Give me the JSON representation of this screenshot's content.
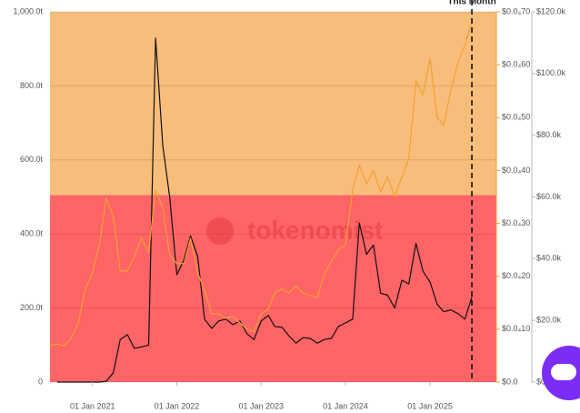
{
  "chart_data": {
    "type": "line",
    "watermark": "tokenomist",
    "x": [
      "2020-07-01",
      "2020-08-01",
      "2020-09-01",
      "2020-10-01",
      "2020-11-01",
      "2020-12-01",
      "2021-01-01",
      "2021-02-01",
      "2021-03-01",
      "2021-04-01",
      "2021-05-01",
      "2021-06-01",
      "2021-07-01",
      "2021-08-01",
      "2021-09-01",
      "2021-10-01",
      "2021-11-01",
      "2021-12-01",
      "2022-01-01",
      "2022-02-01",
      "2022-03-01",
      "2022-04-01",
      "2022-05-01",
      "2022-06-01",
      "2022-07-01",
      "2022-08-01",
      "2022-09-01",
      "2022-10-01",
      "2022-11-01",
      "2022-12-01",
      "2023-01-01",
      "2023-02-01",
      "2023-03-01",
      "2023-04-01",
      "2023-05-01",
      "2023-06-01",
      "2023-07-01",
      "2023-08-01",
      "2023-09-01",
      "2023-10-01",
      "2023-11-01",
      "2023-12-01",
      "2024-01-01",
      "2024-02-01",
      "2024-03-01",
      "2024-04-01",
      "2024-05-01",
      "2024-06-01",
      "2024-07-01",
      "2024-08-01",
      "2024-09-01",
      "2024-10-01",
      "2024-11-01",
      "2024-12-01",
      "2025-01-01",
      "2025-02-01",
      "2025-03-01",
      "2025-04-01",
      "2025-05-01",
      "2025-06-01",
      "2025-07-01"
    ],
    "xlim": [
      "2020-07-01",
      "2025-10-15"
    ],
    "xticks": [
      {
        "value": "2021-01-01",
        "label": "01 Jan 2021"
      },
      {
        "value": "2022-01-01",
        "label": "01 Jan 2022"
      },
      {
        "value": "2023-01-01",
        "label": "01 Jan 2023"
      },
      {
        "value": "2024-01-01",
        "label": "01 Jan 2024"
      },
      {
        "value": "2025-01-01",
        "label": "01 Jan 2025"
      }
    ],
    "ylim": [
      0,
      1000
    ],
    "yticks": [
      0,
      {
        "value": 200,
        "label": "200.0t"
      },
      {
        "value": 400,
        "label": "400.0t"
      },
      {
        "value": 600,
        "label": "600.0t"
      },
      {
        "value": 800,
        "label": "800.0t"
      },
      {
        "value": 1000,
        "label": "1,000.0t"
      }
    ],
    "y2lim": [
      0,
      7e-05
    ],
    "y2ticks": [
      {
        "value": 0,
        "label": "$0.0"
      },
      {
        "value": 1e-05,
        "label": "$0.0₄10"
      },
      {
        "value": 2e-05,
        "label": "$0.0₄20"
      },
      {
        "value": 3e-05,
        "label": "$0.0₄30"
      },
      {
        "value": 4e-05,
        "label": "$0.0₄40"
      },
      {
        "value": 5e-05,
        "label": "$0.0₄50"
      },
      {
        "value": 6e-05,
        "label": "$0.0₄60"
      },
      {
        "value": 7e-05,
        "label": "$0.0₄70"
      }
    ],
    "y3lim": [
      0,
      120000
    ],
    "y3ticks": [
      {
        "value": 0,
        "label": "$0"
      },
      {
        "value": 20000,
        "label": "$20.0k"
      },
      {
        "value": 40000,
        "label": "$40.0k"
      },
      {
        "value": 60000,
        "label": "$60.0k"
      },
      {
        "value": 80000,
        "label": "$80.0k"
      },
      {
        "value": 100000,
        "label": "$100.0k"
      },
      {
        "value": 120000,
        "label": "$120.0k"
      }
    ],
    "bands": [
      {
        "from": 0,
        "to": 505,
        "color": "#ff6466"
      },
      {
        "from": 505,
        "to": 1000,
        "color": "#f8bd7b"
      }
    ],
    "grid": true,
    "annotation": {
      "text": "This Month",
      "x": "2025-07-01"
    },
    "series": [
      {
        "color": "#111111",
        "values": [
          null,
          0,
          0,
          0,
          0,
          0,
          0,
          0,
          2,
          25,
          115,
          128,
          91,
          95,
          100,
          929,
          640,
          500,
          290,
          330,
          395,
          340,
          170,
          145,
          165,
          170,
          155,
          165,
          130,
          115,
          165,
          180,
          150,
          148,
          125,
          105,
          120,
          118,
          105,
          115,
          118,
          150,
          160,
          170,
          430,
          345,
          370,
          240,
          235,
          200,
          275,
          265,
          375,
          300,
          270,
          210,
          190,
          195,
          185,
          170,
          230
        ]
      },
      {
        "color": "#f5a030",
        "axis": "y2",
        "values": [
          6.9e-06,
          7.2e-06,
          6.9e-06,
          8.3e-06,
          1.12e-05,
          1.76e-05,
          2.07e-05,
          2.62e-05,
          3.48e-05,
          3.14e-05,
          2.1e-05,
          2.1e-05,
          2.38e-05,
          2.72e-05,
          2.45e-05,
          3.62e-05,
          3.31e-05,
          2.41e-05,
          2.24e-05,
          2.24e-05,
          2.72e-05,
          2.07e-05,
          1.72e-05,
          1.29e-05,
          1.29e-05,
          1.21e-05,
          1.24e-05,
          1.12e-05,
          1e-05,
          9.5e-06,
          1.29e-05,
          1.38e-05,
          1.69e-05,
          1.76e-05,
          1.69e-05,
          1.81e-05,
          1.69e-05,
          1.64e-05,
          1.59e-05,
          2.03e-05,
          2.28e-05,
          2.5e-05,
          2.59e-05,
          3.62e-05,
          4.1e-05,
          3.74e-05,
          4e-05,
          3.59e-05,
          3.88e-05,
          3.5e-05,
          3.88e-05,
          4.22e-05,
          5.69e-05,
          5.43e-05,
          6.12e-05,
          5e-05,
          4.86e-05,
          5.52e-05,
          6.03e-05,
          6.38e-05,
          6.81e-05
        ]
      }
    ]
  }
}
